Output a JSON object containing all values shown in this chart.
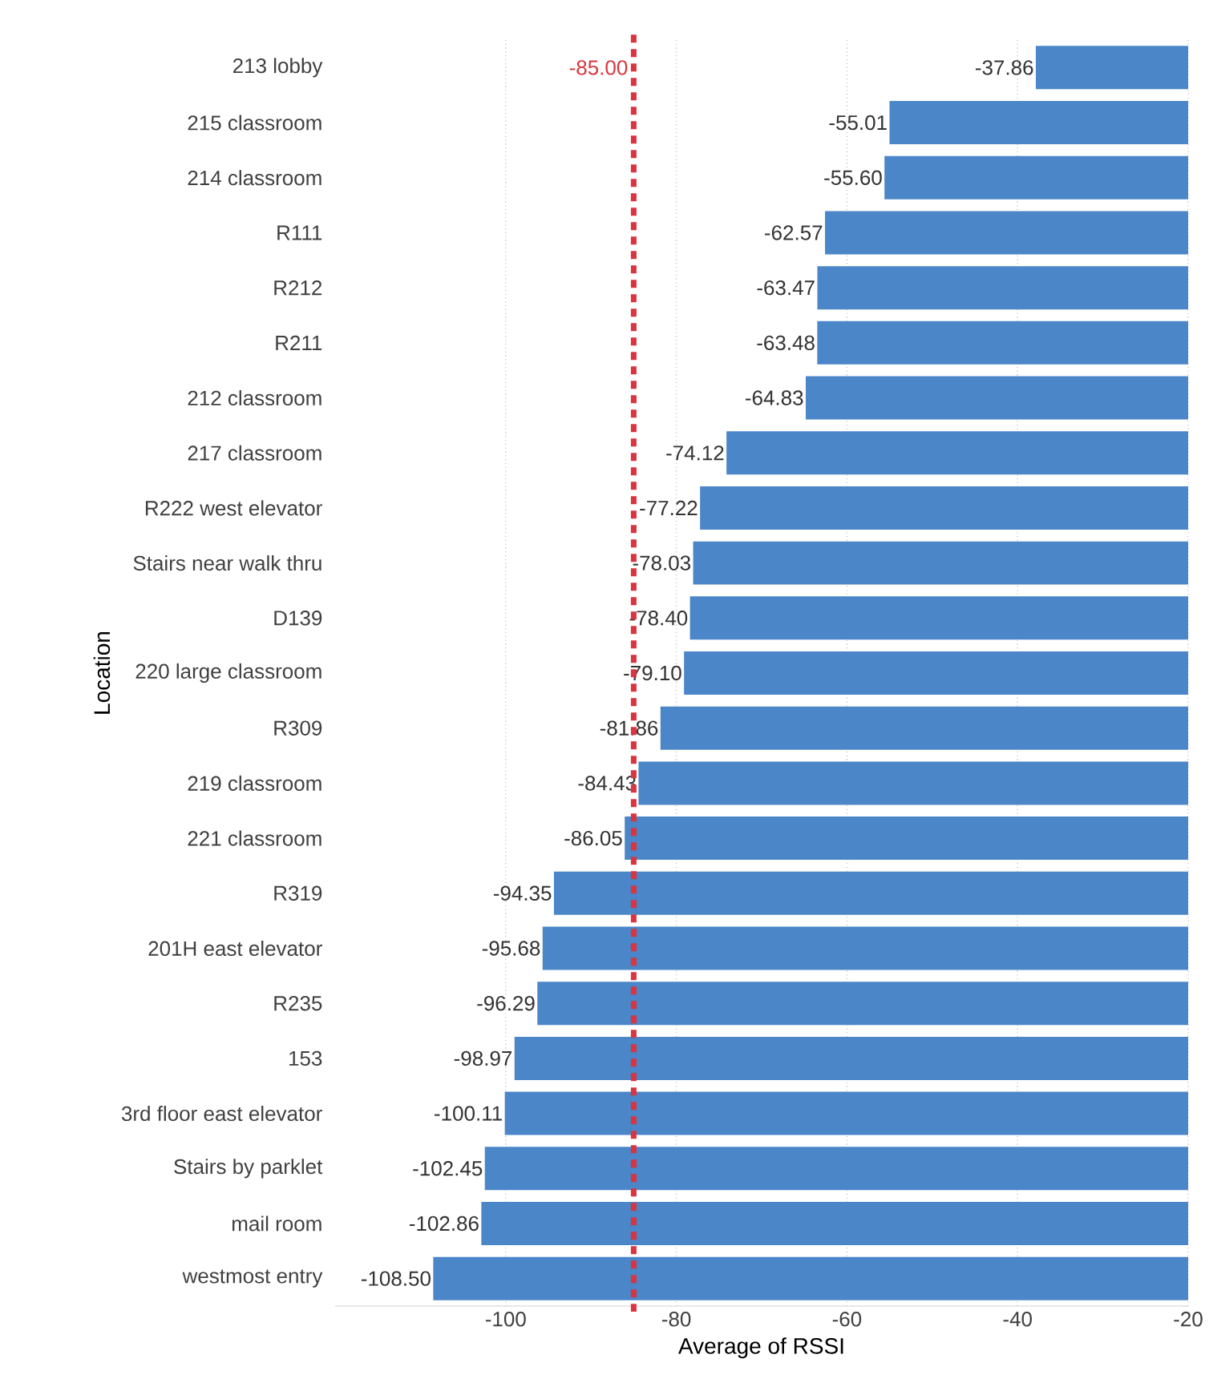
{
  "chart_data": {
    "type": "bar",
    "orientation": "horizontal",
    "xlabel": "Average of RSSI",
    "ylabel": "Location",
    "categories": [
      "213 lobby",
      "215 classroom",
      "214 classroom",
      "R111",
      "R212",
      "R211",
      "212 classroom",
      "217 classroom",
      "R222 west elevator",
      "Stairs near walk thru",
      "D139",
      "220 large classroom",
      "R309",
      "219 classroom",
      "221 classroom",
      "R319",
      "201H east elevator",
      "R235",
      "153",
      "3rd floor east elevator",
      "Stairs by parklet",
      "mail room",
      "westmost entry"
    ],
    "values": [
      -37.86,
      -55.01,
      -55.6,
      -62.57,
      -63.47,
      -63.48,
      -64.83,
      -74.12,
      -77.22,
      -78.03,
      -78.4,
      -79.1,
      -81.86,
      -84.43,
      -86.05,
      -94.35,
      -95.68,
      -96.29,
      -98.97,
      -100.11,
      -102.45,
      -102.86,
      -108.5
    ],
    "value_labels": [
      "-37.86",
      "-55.01",
      "-55.60",
      "-62.57",
      "-63.47",
      "-63.48",
      "-64.83",
      "-74.12",
      "-77.22",
      "-78.03",
      "-78.40",
      "-79.10",
      "-81.86",
      "-84.43",
      "-86.05",
      "-94.35",
      "-95.68",
      "-96.29",
      "-98.97",
      "-100.11",
      "-102.45",
      "-102.86",
      "-108.50"
    ],
    "color": "#4a86c8",
    "xlim": [
      -120,
      -20
    ],
    "xticks": [
      -100,
      -80,
      -60,
      -40,
      -20
    ],
    "grid": "x",
    "ref_lines": [
      {
        "axis": "x",
        "value": -85,
        "label": "-85.00",
        "color": "#d9343f",
        "line_style": "dashed"
      }
    ]
  }
}
